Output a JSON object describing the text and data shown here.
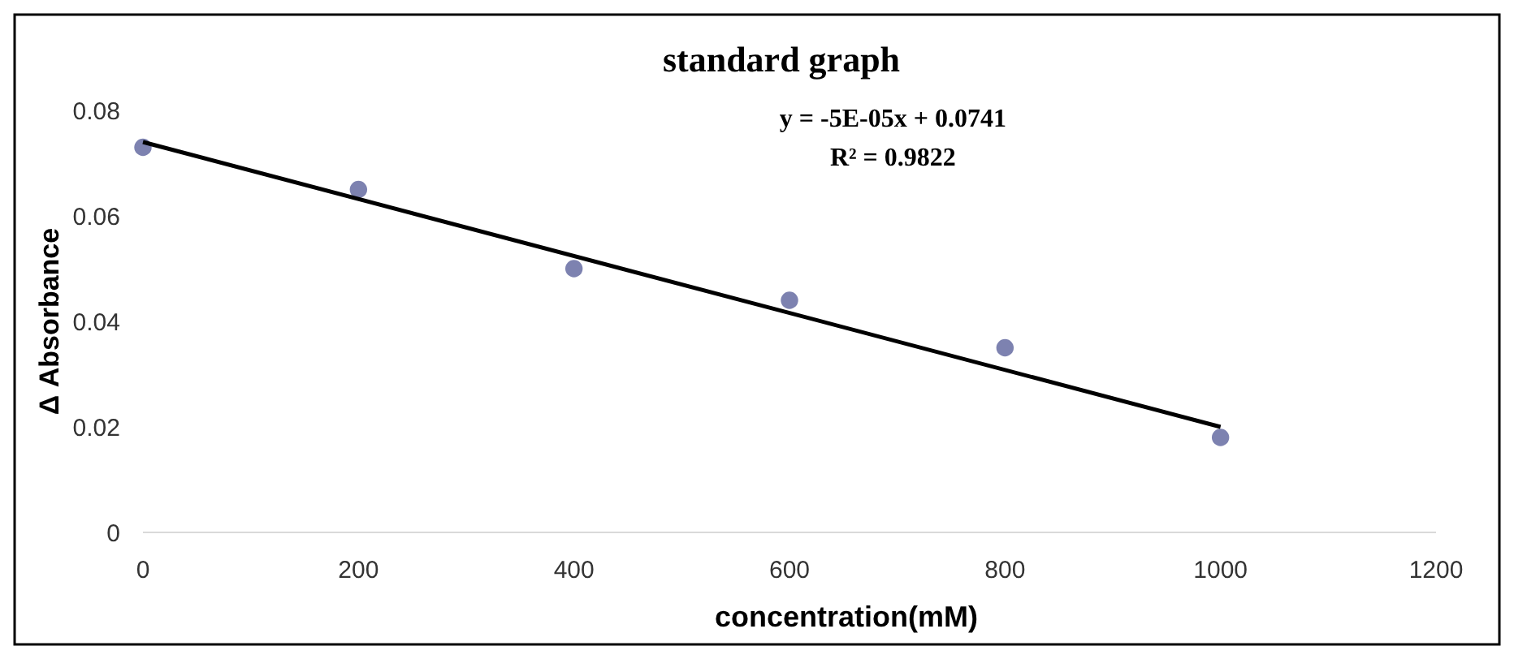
{
  "chart_data": {
    "type": "scatter",
    "title": "standard graph",
    "xlabel": "concentration(mM)",
    "ylabel": "Δ Absorbance",
    "annotations": [
      "y = -5E-05x + 0.0741",
      "R² = 0.9822"
    ],
    "xlim": [
      0,
      1200
    ],
    "xticks": [
      0,
      200,
      400,
      600,
      800,
      1000,
      1200
    ],
    "ylim": [
      0,
      0.08
    ],
    "yticks": [
      0,
      0.02,
      0.04,
      0.06,
      0.08
    ],
    "grid": false,
    "series": [
      {
        "color": "#7d82b0",
        "marker": "circle",
        "x": [
          0,
          200,
          400,
          600,
          800,
          1000
        ],
        "values": [
          0.073,
          0.065,
          0.05,
          0.044,
          0.035,
          0.018
        ]
      },
      {
        "type": "line",
        "color": "#000000",
        "marker": "none",
        "line_style": "solid",
        "x": [
          0,
          1000
        ],
        "values": [
          0.074,
          0.02
        ]
      }
    ]
  }
}
